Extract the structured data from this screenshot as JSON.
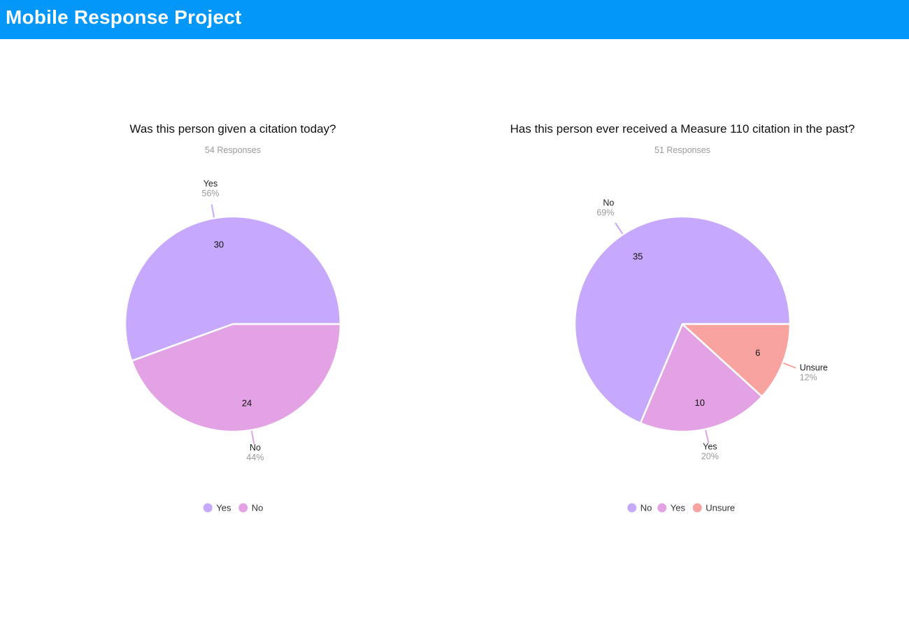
{
  "header": {
    "title": "Mobile Response Project"
  },
  "colors": {
    "header_bg": "#0397f9",
    "series_1": "#c6a9fc",
    "series_2": "#e2a2e4",
    "series_3": "#f8a3a0"
  },
  "chart_data": [
    {
      "type": "pie",
      "title": "Was this person given a citation today?",
      "subtitle": "54 Responses",
      "legend_position": "bottom",
      "slices": [
        {
          "label": "Yes",
          "value": 30,
          "percent": "56%",
          "color": "#c6a9fc"
        },
        {
          "label": "No",
          "value": 24,
          "percent": "44%",
          "color": "#e2a2e4"
        }
      ]
    },
    {
      "type": "pie",
      "title": "Has this person ever received a Measure 110 citation in the past?",
      "subtitle": "51 Responses",
      "legend_position": "bottom",
      "slices": [
        {
          "label": "No",
          "value": 35,
          "percent": "69%",
          "color": "#c6a9fc"
        },
        {
          "label": "Yes",
          "value": 10,
          "percent": "20%",
          "color": "#e2a2e4"
        },
        {
          "label": "Unsure",
          "value": 6,
          "percent": "12%",
          "color": "#f8a3a0"
        }
      ]
    }
  ]
}
